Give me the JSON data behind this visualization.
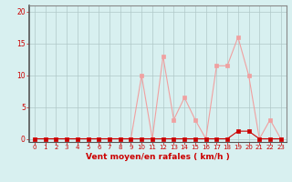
{
  "x": [
    0,
    1,
    2,
    3,
    4,
    5,
    6,
    7,
    8,
    9,
    10,
    11,
    12,
    13,
    14,
    15,
    16,
    17,
    18,
    19,
    20,
    21,
    22,
    23
  ],
  "y_rafales": [
    0,
    0,
    0,
    0,
    0,
    0,
    0,
    0,
    0,
    0,
    10,
    0,
    13,
    3,
    6.5,
    3,
    0,
    11.5,
    11.5,
    16,
    10,
    0,
    3,
    0
  ],
  "y_moyen": [
    0,
    0,
    0,
    0,
    0,
    0,
    0,
    0,
    0,
    0,
    0,
    0,
    0,
    0,
    0,
    0,
    0,
    0,
    0,
    1.2,
    1.2,
    0,
    0,
    0
  ],
  "color_rafales": "#f0a0a0",
  "color_moyen": "#cc0000",
  "bg_color": "#d8f0f0",
  "grid_color": "#b0c8c8",
  "xlabel": "Vent moyen/en rafales ( km/h )",
  "xlim": [
    -0.5,
    23.5
  ],
  "ylim": [
    -0.5,
    21
  ],
  "yticks": [
    0,
    5,
    10,
    15,
    20
  ],
  "xticks": [
    0,
    1,
    2,
    3,
    4,
    5,
    6,
    7,
    8,
    9,
    10,
    11,
    12,
    13,
    14,
    15,
    16,
    17,
    18,
    19,
    20,
    21,
    22,
    23
  ],
  "xlabel_color": "#cc0000",
  "tick_color": "#cc0000",
  "marker_size": 2.5,
  "line_width": 0.8
}
